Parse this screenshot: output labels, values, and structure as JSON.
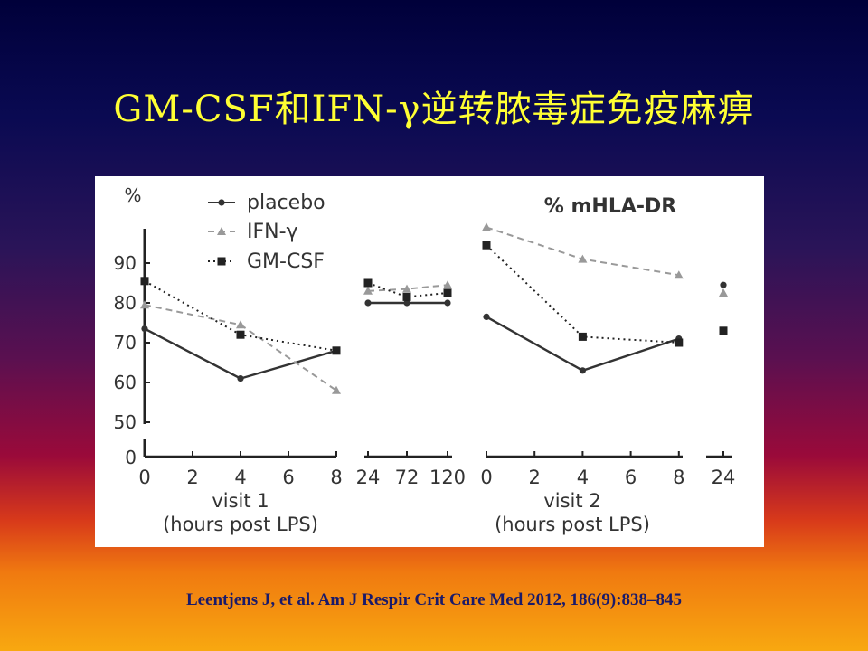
{
  "slide": {
    "title": "GM-CSF和IFN-γ逆转脓毒症免疫麻痹",
    "citation": "Leentjens  J, et al. Am J Respir Crit Care Med 2012, 186(9):838–845"
  },
  "chart_data": [
    {
      "type": "line",
      "panel": "visit 1",
      "ylabel": "%",
      "xlabel": "visit 1\n(hours post LPS)",
      "x": [
        0,
        4,
        8
      ],
      "x_ticks": [
        "0",
        "2",
        "4",
        "6",
        "8"
      ],
      "y_ticks": [
        "50",
        "60",
        "70",
        "80",
        "90"
      ],
      "y_break_tick": "0",
      "ylim": [
        50,
        95
      ],
      "legend": [
        "placebo",
        "IFN-γ",
        "GM-CSF"
      ],
      "series": [
        {
          "name": "placebo",
          "values": [
            73.5,
            61.0,
            68.0
          ],
          "color": "#333333",
          "marker": "circle",
          "dash": "solid"
        },
        {
          "name": "IFN-γ",
          "values": [
            79.5,
            74.5,
            58.0
          ],
          "color": "#999999",
          "marker": "triangle",
          "dash": "dashed"
        },
        {
          "name": "GM-CSF",
          "values": [
            85.5,
            72.0,
            68.0
          ],
          "color": "#222222",
          "marker": "square",
          "dash": "dotted"
        }
      ],
      "followup": {
        "x_ticks": [
          "24",
          "72",
          "120"
        ],
        "series": [
          {
            "name": "placebo",
            "values": [
              80.0,
              80.0,
              80.0
            ]
          },
          {
            "name": "IFN-γ",
            "values": [
              83.0,
              83.5,
              84.5
            ]
          },
          {
            "name": "GM-CSF",
            "values": [
              85.0,
              81.5,
              82.5
            ]
          }
        ]
      }
    },
    {
      "type": "line",
      "panel": "visit 2",
      "title": "% mHLA-DR",
      "xlabel": "visit 2\n(hours post LPS)",
      "x": [
        0,
        4,
        8
      ],
      "x_ticks": [
        "0",
        "2",
        "4",
        "6",
        "8"
      ],
      "series": [
        {
          "name": "placebo",
          "values": [
            76.5,
            63.0,
            71.0
          ]
        },
        {
          "name": "IFN-γ",
          "values": [
            99.0,
            91.0,
            87.0
          ]
        },
        {
          "name": "GM-CSF",
          "values": [
            94.5,
            71.5,
            70.0
          ]
        }
      ],
      "followup": {
        "x_ticks": [
          "24"
        ],
        "series": [
          {
            "name": "placebo",
            "values": [
              84.5
            ]
          },
          {
            "name": "IFN-γ",
            "values": [
              82.5
            ]
          },
          {
            "name": "GM-CSF",
            "values": [
              73.0
            ]
          }
        ]
      }
    }
  ]
}
